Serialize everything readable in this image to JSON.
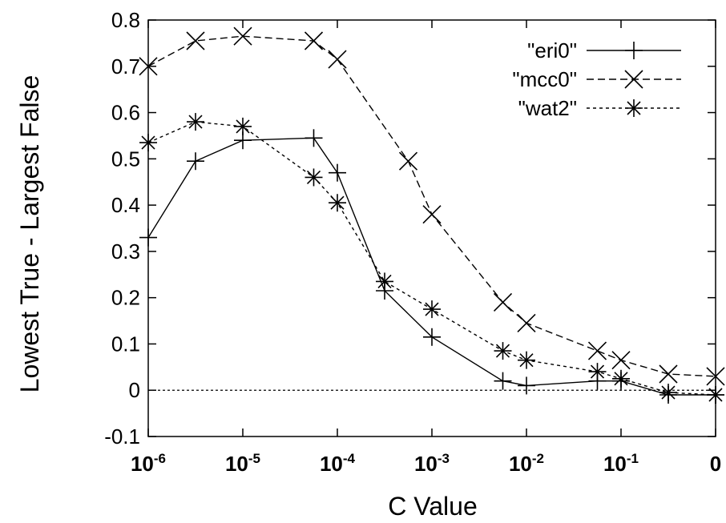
{
  "chart_data": {
    "type": "line",
    "xlabel": "C Value",
    "ylabel": "Lowest True - Largest False",
    "ylim": [
      -0.1,
      0.8
    ],
    "yticks": [
      "-0.1",
      "0",
      "0.1",
      "0.2",
      "0.3",
      "0.4",
      "0.5",
      "0.6",
      "0.7",
      "0.8"
    ],
    "yticks_values": [
      -0.1,
      0,
      0.1,
      0.2,
      0.3,
      0.4,
      0.5,
      0.6,
      0.7,
      0.8
    ],
    "x_scale": "log-like (exponent labels)",
    "xticks": [
      {
        "base": "10",
        "exp": "-6"
      },
      {
        "base": "10",
        "exp": "-5"
      },
      {
        "base": "10",
        "exp": "-4"
      },
      {
        "base": "10",
        "exp": "-3"
      },
      {
        "base": "10",
        "exp": "-2"
      },
      {
        "base": "10",
        "exp": "-1"
      },
      {
        "base": "0",
        "exp": ""
      }
    ],
    "xticks_index": [
      0,
      1,
      2,
      3,
      4,
      5,
      6
    ],
    "zero_line": true,
    "legend_position": "top-right",
    "series": [
      {
        "name": "\"eri0\"",
        "marker": "plus",
        "dash": "solid",
        "x": [
          0,
          0.5,
          1,
          1.75,
          2,
          2.5,
          3,
          3.75,
          4,
          4.75,
          5,
          5.5,
          6
        ],
        "y": [
          0.33,
          0.495,
          0.54,
          0.545,
          0.47,
          0.215,
          0.115,
          0.02,
          0.01,
          0.02,
          0.02,
          -0.01,
          -0.01
        ]
      },
      {
        "name": "\"mcc0\"",
        "marker": "x",
        "dash": "dashed",
        "x": [
          0,
          0.5,
          1,
          1.75,
          2,
          2.75,
          3,
          3.75,
          4,
          4.75,
          5,
          5.5,
          6
        ],
        "y": [
          0.7,
          0.755,
          0.765,
          0.755,
          0.715,
          0.495,
          0.38,
          0.19,
          0.145,
          0.085,
          0.065,
          0.035,
          0.03
        ]
      },
      {
        "name": "\"wat2\"",
        "marker": "star",
        "dash": "dotted",
        "x": [
          0,
          0.5,
          1,
          1.75,
          2,
          2.5,
          3,
          3.75,
          4,
          4.75,
          5,
          5.5,
          6
        ],
        "y": [
          0.535,
          0.58,
          0.57,
          0.46,
          0.405,
          0.235,
          0.175,
          0.085,
          0.065,
          0.04,
          0.025,
          -0.005,
          -0.01
        ]
      }
    ]
  }
}
